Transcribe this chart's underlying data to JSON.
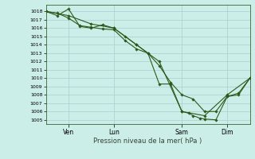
{
  "xlabel": "Pression niveau de la mer( hPa )",
  "bg_color": "#cceee8",
  "grid_color": "#aacccc",
  "line_color": "#2d5a1b",
  "ylim": [
    1004.5,
    1018.8
  ],
  "xtick_labels": [
    "Ven",
    "Lun",
    "Sam",
    "Dim"
  ],
  "xtick_positions": [
    1,
    3,
    6,
    8
  ],
  "ytick_values": [
    1005,
    1006,
    1007,
    1008,
    1009,
    1010,
    1011,
    1012,
    1013,
    1014,
    1015,
    1016,
    1017,
    1018
  ],
  "xlim": [
    0,
    9
  ],
  "line1_x": [
    0,
    0.5,
    1.0,
    1.5,
    2.0,
    2.5,
    3.0,
    3.5,
    4.0,
    4.5,
    5.0,
    5.5,
    6.0,
    6.3,
    6.5,
    6.8,
    7.0,
    7.5,
    8.0,
    8.5,
    9.0
  ],
  "line1_y": [
    1018,
    1017.8,
    1017.2,
    1016.3,
    1016.1,
    1015.9,
    1015.8,
    1014.5,
    1013.5,
    1013.0,
    1009.3,
    1009.3,
    1006.0,
    1005.8,
    1005.5,
    1005.2,
    1005.1,
    1005.0,
    1007.8,
    1008.0,
    1010.0
  ],
  "line2_x": [
    0,
    0.5,
    1.0,
    1.5,
    2.0,
    2.5,
    3.0,
    3.5,
    4.0,
    4.5,
    5.0,
    5.5,
    6.0,
    6.5,
    7.0,
    7.5,
    8.0,
    8.5,
    9.0
  ],
  "line2_y": [
    1018,
    1017.5,
    1018.3,
    1016.2,
    1016.0,
    1016.4,
    1016.0,
    1015.0,
    1014.0,
    1013.0,
    1011.5,
    1009.5,
    1008.0,
    1007.5,
    1006.0,
    1006.0,
    1007.8,
    1008.2,
    1010.0
  ],
  "line3_x": [
    0,
    1,
    2,
    3,
    4,
    5,
    6,
    7,
    8,
    9
  ],
  "line3_y": [
    1018,
    1017.5,
    1016.5,
    1016.0,
    1014.0,
    1012.0,
    1006.0,
    1005.5,
    1008.0,
    1010.0
  ]
}
